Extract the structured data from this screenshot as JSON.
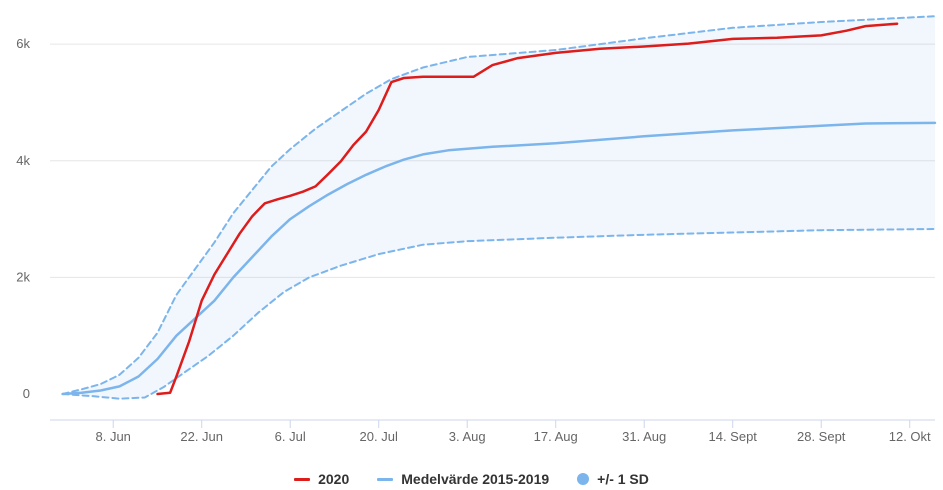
{
  "chart_data": {
    "type": "line",
    "x_axis": {
      "type": "date",
      "range": [
        "2020-05-29",
        "2020-10-16"
      ],
      "tick_labels": [
        "8. Jun",
        "22. Jun",
        "6. Jul",
        "20. Jul",
        "3. Aug",
        "17. Aug",
        "31. Aug",
        "14. Sept",
        "28. Sept",
        "12. Okt"
      ],
      "tick_dates": [
        "2020-06-08",
        "2020-06-22",
        "2020-07-06",
        "2020-07-20",
        "2020-08-03",
        "2020-08-17",
        "2020-08-31",
        "2020-09-14",
        "2020-09-28",
        "2020-10-12"
      ]
    },
    "y_axis": {
      "range": [
        0,
        6500
      ],
      "tick_values": [
        0,
        2000,
        4000,
        6000
      ],
      "tick_labels": [
        "0",
        "2k",
        "4k",
        "6k"
      ],
      "grid": true
    },
    "legend": {
      "placement": "bottom-center"
    },
    "series": [
      {
        "name": "2020",
        "color": "#dd1c1c",
        "style": "solid",
        "points": [
          [
            "2020-06-15",
            0
          ],
          [
            "2020-06-17",
            20
          ],
          [
            "2020-06-18",
            300
          ],
          [
            "2020-06-20",
            900
          ],
          [
            "2020-06-22",
            1600
          ],
          [
            "2020-06-24",
            2050
          ],
          [
            "2020-06-26",
            2400
          ],
          [
            "2020-06-28",
            2750
          ],
          [
            "2020-06-30",
            3050
          ],
          [
            "2020-07-02",
            3270
          ],
          [
            "2020-07-04",
            3340
          ],
          [
            "2020-07-06",
            3400
          ],
          [
            "2020-07-08",
            3470
          ],
          [
            "2020-07-10",
            3560
          ],
          [
            "2020-07-12",
            3770
          ],
          [
            "2020-07-14",
            3990
          ],
          [
            "2020-07-16",
            4270
          ],
          [
            "2020-07-18",
            4500
          ],
          [
            "2020-07-20",
            4870
          ],
          [
            "2020-07-22",
            5350
          ],
          [
            "2020-07-24",
            5420
          ],
          [
            "2020-07-27",
            5440
          ],
          [
            "2020-07-31",
            5440
          ],
          [
            "2020-08-04",
            5440
          ],
          [
            "2020-08-07",
            5640
          ],
          [
            "2020-08-11",
            5760
          ],
          [
            "2020-08-17",
            5850
          ],
          [
            "2020-08-24",
            5920
          ],
          [
            "2020-08-31",
            5960
          ],
          [
            "2020-09-07",
            6010
          ],
          [
            "2020-09-14",
            6090
          ],
          [
            "2020-09-21",
            6110
          ],
          [
            "2020-09-28",
            6150
          ],
          [
            "2020-10-02",
            6230
          ],
          [
            "2020-10-05",
            6310
          ],
          [
            "2020-10-10",
            6350
          ]
        ]
      },
      {
        "name": "Medelvärde 2015-2019",
        "color": "#7cb5ec",
        "style": "solid",
        "points": [
          [
            "2020-05-31",
            0
          ],
          [
            "2020-06-03",
            20
          ],
          [
            "2020-06-06",
            60
          ],
          [
            "2020-06-09",
            130
          ],
          [
            "2020-06-12",
            300
          ],
          [
            "2020-06-15",
            600
          ],
          [
            "2020-06-18",
            1000
          ],
          [
            "2020-06-21",
            1300
          ],
          [
            "2020-06-24",
            1600
          ],
          [
            "2020-06-27",
            2000
          ],
          [
            "2020-06-30",
            2350
          ],
          [
            "2020-07-03",
            2700
          ],
          [
            "2020-07-06",
            3000
          ],
          [
            "2020-07-09",
            3220
          ],
          [
            "2020-07-12",
            3420
          ],
          [
            "2020-07-15",
            3600
          ],
          [
            "2020-07-18",
            3760
          ],
          [
            "2020-07-21",
            3900
          ],
          [
            "2020-07-24",
            4020
          ],
          [
            "2020-07-27",
            4110
          ],
          [
            "2020-07-31",
            4180
          ],
          [
            "2020-08-07",
            4240
          ],
          [
            "2020-08-17",
            4300
          ],
          [
            "2020-08-31",
            4420
          ],
          [
            "2020-09-14",
            4520
          ],
          [
            "2020-09-28",
            4600
          ],
          [
            "2020-10-05",
            4640
          ],
          [
            "2020-10-16",
            4650
          ]
        ]
      },
      {
        "name": "Medelvärde 2015-2019 + 1 SD",
        "color": "#7cb5ec",
        "style": "dashed",
        "points": [
          [
            "2020-05-31",
            0
          ],
          [
            "2020-06-03",
            80
          ],
          [
            "2020-06-06",
            170
          ],
          [
            "2020-06-09",
            330
          ],
          [
            "2020-06-12",
            620
          ],
          [
            "2020-06-15",
            1050
          ],
          [
            "2020-06-18",
            1700
          ],
          [
            "2020-06-21",
            2150
          ],
          [
            "2020-06-24",
            2600
          ],
          [
            "2020-06-27",
            3100
          ],
          [
            "2020-06-30",
            3500
          ],
          [
            "2020-07-03",
            3900
          ],
          [
            "2020-07-06",
            4200
          ],
          [
            "2020-07-10",
            4550
          ],
          [
            "2020-07-14",
            4850
          ],
          [
            "2020-07-18",
            5150
          ],
          [
            "2020-07-22",
            5400
          ],
          [
            "2020-07-27",
            5600
          ],
          [
            "2020-08-03",
            5780
          ],
          [
            "2020-08-17",
            5900
          ],
          [
            "2020-08-31",
            6100
          ],
          [
            "2020-09-14",
            6280
          ],
          [
            "2020-09-28",
            6380
          ],
          [
            "2020-10-16",
            6480
          ]
        ]
      },
      {
        "name": "Medelvärde 2015-2019 - 1 SD",
        "color": "#7cb5ec",
        "style": "dashed",
        "points": [
          [
            "2020-05-31",
            0
          ],
          [
            "2020-06-05",
            -40
          ],
          [
            "2020-06-09",
            -80
          ],
          [
            "2020-06-13",
            -60
          ],
          [
            "2020-06-16",
            120
          ],
          [
            "2020-06-19",
            350
          ],
          [
            "2020-06-23",
            650
          ],
          [
            "2020-06-27",
            1000
          ],
          [
            "2020-07-01",
            1400
          ],
          [
            "2020-07-05",
            1750
          ],
          [
            "2020-07-09",
            2000
          ],
          [
            "2020-07-14",
            2200
          ],
          [
            "2020-07-20",
            2400
          ],
          [
            "2020-07-27",
            2560
          ],
          [
            "2020-08-03",
            2620
          ],
          [
            "2020-08-17",
            2680
          ],
          [
            "2020-08-31",
            2730
          ],
          [
            "2020-09-14",
            2770
          ],
          [
            "2020-09-28",
            2810
          ],
          [
            "2020-10-16",
            2830
          ]
        ]
      }
    ],
    "band": {
      "name": "+/- 1 SD",
      "color": "#7cb5ec",
      "fill_opacity": 0.1,
      "upper_series": 2,
      "lower_series": 3
    }
  },
  "legend_items": [
    {
      "label": "2020",
      "color": "#dd1c1c",
      "symbol": "line"
    },
    {
      "label": "Medelvärde 2015-2019",
      "color": "#7cb5ec",
      "symbol": "line"
    },
    {
      "label": "+/- 1 SD",
      "color": "#7cb5ec",
      "symbol": "dot"
    }
  ]
}
